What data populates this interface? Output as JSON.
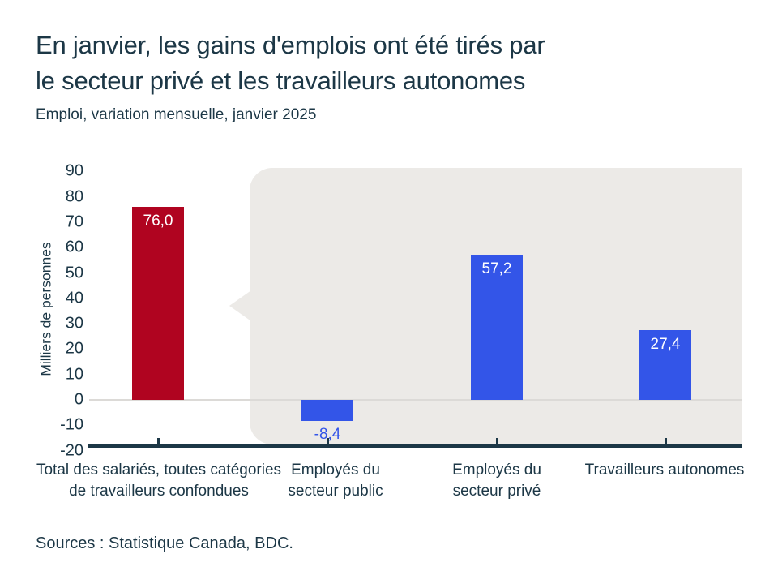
{
  "page": {
    "title_line1": "En janvier, les gains d'emplois ont été tirés par",
    "title_line2": "le secteur privé et les travailleurs autonomes",
    "subtitle": "Emploi, variation mensuelle, janvier 2025",
    "source": "Sources : Statistique Canada, BDC."
  },
  "colors": {
    "accent_red": "#B00420",
    "accent_blue": "#3355E8",
    "text_navy": "#1C3746",
    "callout_gray": "#ECEAE7",
    "zero_line_gray": "#DCDAD7"
  },
  "chart_data": {
    "type": "bar",
    "title": "Emploi, variation mensuelle, janvier 2025",
    "xlabel": "",
    "ylabel": "Milliers de personnes",
    "ylim": [
      -20,
      90
    ],
    "yticks": [
      90,
      80,
      70,
      60,
      50,
      40,
      30,
      20,
      10,
      0,
      -10,
      -20
    ],
    "grid": false,
    "zero_baseline": true,
    "legend": false,
    "categories": [
      "Total des salariés, toutes catégories de travailleurs confondues",
      "Employés du secteur public",
      "Employés du secteur privé",
      "Travailleurs autonomes"
    ],
    "category_lines": [
      [
        "Total des salariés, toutes catégories",
        "de travailleurs confondues"
      ],
      [
        "Employés du",
        "secteur public"
      ],
      [
        "Employés du",
        "secteur privé"
      ],
      [
        "Travailleurs autonomes"
      ]
    ],
    "values": [
      76.0,
      -8.4,
      57.2,
      27.4
    ],
    "value_labels": [
      "76,0",
      "-8,4",
      "57,2",
      "27,4"
    ],
    "bar_colors": [
      "#B00420",
      "#3355E8",
      "#3355E8",
      "#3355E8"
    ],
    "annotations": {
      "highlight_bubble": "speech-bubble highlight behind the last three bars"
    }
  }
}
